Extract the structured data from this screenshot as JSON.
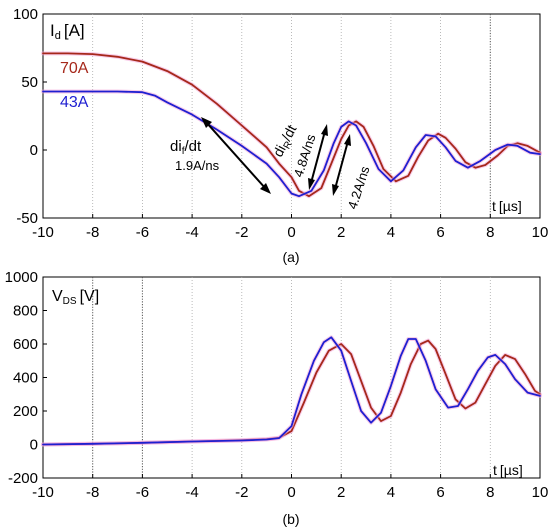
{
  "colors": {
    "series_43A": "#1f1fd1",
    "series_70A": "#a6281b",
    "halo": "#f2a6d8",
    "grid": "#555555",
    "axis": "#000000",
    "background": "#ffffff"
  },
  "chart_data": [
    {
      "type": "line",
      "caption": "(a)",
      "ylabel_main": "I",
      "ylabel_sub": "d",
      "ylabel_unit": "[A]",
      "xlabel_main": "t",
      "xlabel_unit": "[µs]",
      "xlim": [
        -10,
        10
      ],
      "ylim": [
        -50,
        100
      ],
      "xticks": [
        "-10",
        "-8",
        "-6",
        "-4",
        "-2",
        "0",
        "2",
        "4",
        "6",
        "8",
        "10"
      ],
      "yticks": [
        "100",
        "50",
        "0",
        "-50"
      ],
      "grid": "vertical dotted at x = -8, -6, -4, -2, 0, 2, 4, 6, 8",
      "series": [
        {
          "name": "70A",
          "color": "#a6281b",
          "points": [
            [
              -10,
              71
            ],
            [
              -9,
              71
            ],
            [
              -8,
              70.5
            ],
            [
              -7,
              68.5
            ],
            [
              -6,
              65
            ],
            [
              -5,
              58
            ],
            [
              -4,
              48
            ],
            [
              -3,
              34
            ],
            [
              -2,
              18
            ],
            [
              -1,
              2
            ],
            [
              -0.5,
              -10
            ],
            [
              0,
              -20
            ],
            [
              0.3,
              -30
            ],
            [
              0.7,
              -34
            ],
            [
              1.2,
              -28
            ],
            [
              1.6,
              -10
            ],
            [
              2,
              8
            ],
            [
              2.3,
              18
            ],
            [
              2.6,
              21
            ],
            [
              2.9,
              17
            ],
            [
              3.3,
              3
            ],
            [
              3.7,
              -14
            ],
            [
              4.2,
              -23
            ],
            [
              4.7,
              -19
            ],
            [
              5.1,
              -5
            ],
            [
              5.5,
              7
            ],
            [
              5.9,
              12
            ],
            [
              6.2,
              9
            ],
            [
              6.6,
              1
            ],
            [
              7,
              -9
            ],
            [
              7.4,
              -13
            ],
            [
              7.8,
              -11
            ],
            [
              8.3,
              -4
            ],
            [
              8.7,
              3
            ],
            [
              9.1,
              5
            ],
            [
              9.5,
              3
            ],
            [
              10,
              -2
            ]
          ]
        },
        {
          "name": "43A",
          "color": "#1f1fd1",
          "points": [
            [
              -10,
              43
            ],
            [
              -9,
              43
            ],
            [
              -8,
              43
            ],
            [
              -7,
              43
            ],
            [
              -6,
              42.5
            ],
            [
              -5.5,
              40
            ],
            [
              -5,
              35
            ],
            [
              -4,
              26
            ],
            [
              -3,
              15
            ],
            [
              -2,
              3
            ],
            [
              -1,
              -10
            ],
            [
              -0.5,
              -20
            ],
            [
              0,
              -32
            ],
            [
              0.3,
              -34
            ],
            [
              0.8,
              -30
            ],
            [
              1.3,
              -15
            ],
            [
              1.7,
              5
            ],
            [
              2,
              17
            ],
            [
              2.3,
              21
            ],
            [
              2.6,
              18
            ],
            [
              3,
              5
            ],
            [
              3.5,
              -14
            ],
            [
              4,
              -23
            ],
            [
              4.5,
              -15
            ],
            [
              5,
              2
            ],
            [
              5.4,
              11
            ],
            [
              5.8,
              10
            ],
            [
              6.2,
              2
            ],
            [
              6.6,
              -8
            ],
            [
              7.1,
              -13
            ],
            [
              7.6,
              -8
            ],
            [
              8.2,
              0
            ],
            [
              8.7,
              4
            ],
            [
              9.1,
              3
            ],
            [
              9.6,
              -2
            ],
            [
              10,
              -3
            ]
          ]
        }
      ],
      "annotations": [
        {
          "text_main": "di",
          "text_sub": "f",
          "text_tail": "/dt",
          "value": "1.9A/ns"
        },
        {
          "text_main": "di",
          "text_sub": "R",
          "text_tail": "/dt"
        },
        {
          "value": "4.8A/ns"
        },
        {
          "value": "4.2A/ns"
        }
      ],
      "series_labels": [
        "70A",
        "43A"
      ]
    },
    {
      "type": "line",
      "caption": "(b)",
      "ylabel_main": "V",
      "ylabel_sub": "DS",
      "ylabel_unit": "[V]",
      "xlabel_main": "t",
      "xlabel_unit": "[µs]",
      "xlim": [
        -10,
        10
      ],
      "ylim": [
        -200,
        1000
      ],
      "xticks": [
        "-10",
        "-8",
        "-6",
        "-4",
        "-2",
        "0",
        "2",
        "4",
        "6",
        "8",
        "10"
      ],
      "yticks": [
        "1000",
        "800",
        "600",
        "400",
        "200",
        "0",
        "-200"
      ],
      "grid": "vertical dotted at x = -8, -6, -4, -2, 0, 2, 4, 6, 8",
      "series": [
        {
          "name": "70A",
          "color": "#a6281b",
          "points": [
            [
              -10,
              0
            ],
            [
              -8,
              4
            ],
            [
              -6,
              10
            ],
            [
              -4,
              18
            ],
            [
              -2,
              26
            ],
            [
              -1,
              32
            ],
            [
              -0.5,
              40
            ],
            [
              0,
              80
            ],
            [
              0.5,
              250
            ],
            [
              1,
              430
            ],
            [
              1.5,
              560
            ],
            [
              2,
              600
            ],
            [
              2.4,
              540
            ],
            [
              2.8,
              380
            ],
            [
              3.2,
              220
            ],
            [
              3.6,
              140
            ],
            [
              4,
              170
            ],
            [
              4.4,
              310
            ],
            [
              4.8,
              480
            ],
            [
              5.2,
              600
            ],
            [
              5.5,
              620
            ],
            [
              5.8,
              570
            ],
            [
              6.2,
              420
            ],
            [
              6.6,
              270
            ],
            [
              7,
              215
            ],
            [
              7.4,
              250
            ],
            [
              7.8,
              360
            ],
            [
              8.2,
              470
            ],
            [
              8.6,
              535
            ],
            [
              9,
              510
            ],
            [
              9.4,
              420
            ],
            [
              9.8,
              320
            ],
            [
              10,
              300
            ]
          ]
        },
        {
          "name": "43A",
          "color": "#1f1fd1",
          "points": [
            [
              -10,
              0
            ],
            [
              -8,
              4
            ],
            [
              -6,
              10
            ],
            [
              -4,
              18
            ],
            [
              -2,
              24
            ],
            [
              -1,
              30
            ],
            [
              -0.5,
              38
            ],
            [
              0,
              110
            ],
            [
              0.4,
              300
            ],
            [
              0.9,
              500
            ],
            [
              1.3,
              610
            ],
            [
              1.6,
              640
            ],
            [
              2,
              560
            ],
            [
              2.4,
              380
            ],
            [
              2.8,
              200
            ],
            [
              3.2,
              130
            ],
            [
              3.6,
              190
            ],
            [
              4,
              350
            ],
            [
              4.4,
              530
            ],
            [
              4.7,
              630
            ],
            [
              5,
              630
            ],
            [
              5.4,
              500
            ],
            [
              5.8,
              330
            ],
            [
              6.3,
              220
            ],
            [
              6.7,
              230
            ],
            [
              7.1,
              330
            ],
            [
              7.5,
              440
            ],
            [
              7.9,
              520
            ],
            [
              8.2,
              535
            ],
            [
              8.6,
              480
            ],
            [
              9,
              390
            ],
            [
              9.5,
              310
            ],
            [
              10,
              290
            ]
          ]
        }
      ]
    }
  ]
}
